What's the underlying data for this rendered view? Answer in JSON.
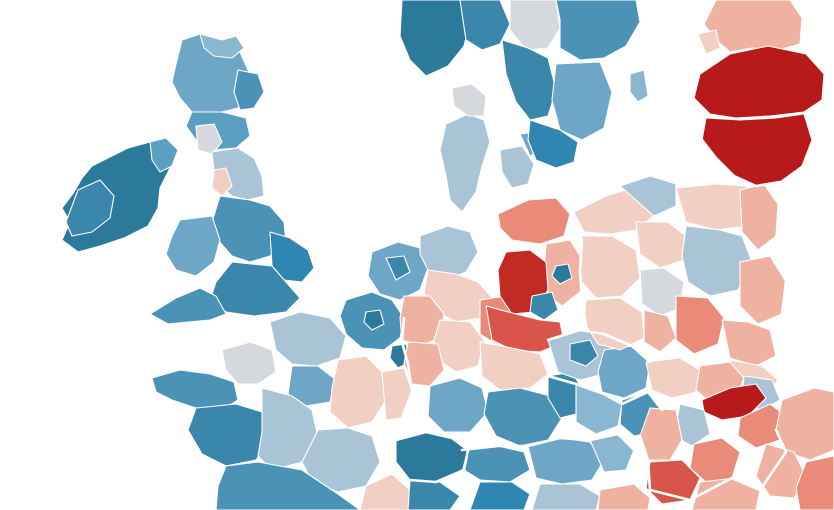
{
  "map": {
    "legend": [],
    "color_scale": {
      "dark_blue": "#2b7a9c",
      "blue": "#4a93b7",
      "mid_blue": "#6da6c6",
      "light_blue": "#a9c4d6",
      "grey": "#d5d8dc",
      "light_pink": "#f1cfc3",
      "pink": "#f0b2a0",
      "salmon": "#e98b78",
      "red": "#d9544a",
      "dark_red": "#b8191b"
    },
    "regions": [
      {
        "name": "ireland",
        "value_class": "dark_blue"
      },
      {
        "name": "northern-ireland",
        "value_class": "blue"
      },
      {
        "name": "scotland",
        "value_class": "mid_blue"
      },
      {
        "name": "england-wales",
        "value_class": "blue"
      },
      {
        "name": "france",
        "value_class": "light_blue"
      },
      {
        "name": "benelux",
        "value_class": "blue"
      },
      {
        "name": "germany-west",
        "value_class": "light_pink"
      },
      {
        "name": "germany-east",
        "value_class": "salmon"
      },
      {
        "name": "germany-south",
        "value_class": "blue"
      },
      {
        "name": "switzerland",
        "value_class": "dark_blue"
      },
      {
        "name": "austria",
        "value_class": "mid_blue"
      },
      {
        "name": "czechia",
        "value_class": "mid_blue"
      },
      {
        "name": "denmark",
        "value_class": "light_blue"
      },
      {
        "name": "norway",
        "value_class": "dark_blue"
      },
      {
        "name": "sweden",
        "value_class": "blue"
      },
      {
        "name": "poland",
        "value_class": "light_pink"
      },
      {
        "name": "baltics",
        "value_class": "dark_red"
      },
      {
        "name": "estonia",
        "value_class": "pink"
      },
      {
        "name": "hungary",
        "value_class": "salmon"
      },
      {
        "name": "slovakia",
        "value_class": "pink"
      }
    ]
  }
}
